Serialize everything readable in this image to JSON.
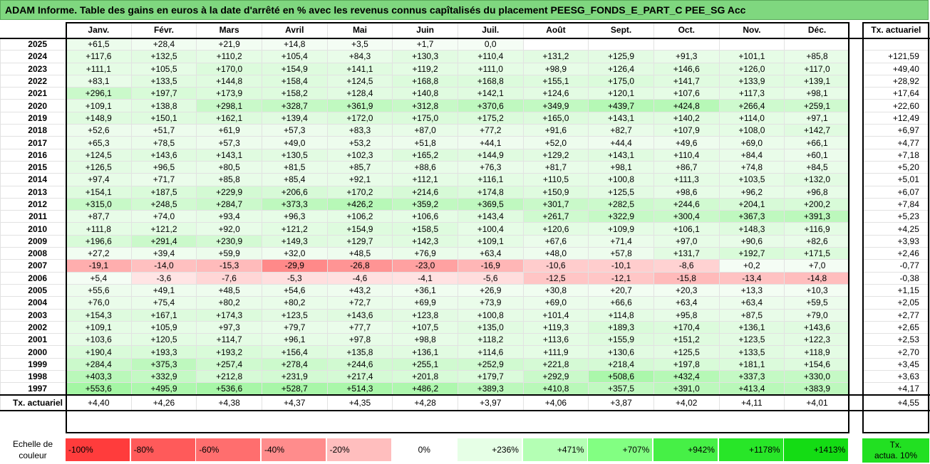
{
  "title": "ADAM Informe. Table des gains en euros à la date d'arrêté en % avec les revenus connus capîtalisés du placement PEESG_FONDS_E_PART_C PEE_SG Acc",
  "chart_data": {
    "type": "table",
    "columns": [
      "Janv.",
      "Févr.",
      "Mars",
      "Avril",
      "Mai",
      "Juin",
      "Juil.",
      "Août",
      "Sept.",
      "Oct.",
      "Nov.",
      "Déc."
    ],
    "tx_header": "Tx. actuariel",
    "rows": [
      {
        "year": "2025",
        "values": [
          "+61,5",
          "+28,4",
          "+21,9",
          "+14,8",
          "+3,5",
          "+1,7",
          "0,0",
          "",
          "",
          "",
          "",
          ""
        ],
        "tx": ""
      },
      {
        "year": "2024",
        "values": [
          "+117,6",
          "+132,5",
          "+110,2",
          "+105,4",
          "+84,3",
          "+130,3",
          "+110,4",
          "+131,2",
          "+125,9",
          "+91,3",
          "+101,1",
          "+85,8"
        ],
        "tx": "+121,59"
      },
      {
        "year": "2023",
        "values": [
          "+111,1",
          "+105,5",
          "+170,0",
          "+154,9",
          "+141,1",
          "+119,2",
          "+111,0",
          "+98,9",
          "+126,4",
          "+146,6",
          "+126,0",
          "+117,0"
        ],
        "tx": "+49,40"
      },
      {
        "year": "2022",
        "values": [
          "+83,1",
          "+133,5",
          "+144,8",
          "+158,4",
          "+124,5",
          "+168,8",
          "+168,8",
          "+155,1",
          "+175,0",
          "+141,7",
          "+133,9",
          "+139,1"
        ],
        "tx": "+28,92"
      },
      {
        "year": "2021",
        "values": [
          "+296,1",
          "+197,7",
          "+173,9",
          "+158,2",
          "+128,4",
          "+140,8",
          "+142,1",
          "+124,6",
          "+120,1",
          "+107,6",
          "+117,3",
          "+98,1"
        ],
        "tx": "+17,64"
      },
      {
        "year": "2020",
        "values": [
          "+109,1",
          "+138,8",
          "+298,1",
          "+328,7",
          "+361,9",
          "+312,8",
          "+370,6",
          "+349,9",
          "+439,7",
          "+424,8",
          "+266,4",
          "+259,1"
        ],
        "tx": "+22,60"
      },
      {
        "year": "2019",
        "values": [
          "+148,9",
          "+150,1",
          "+162,1",
          "+139,4",
          "+172,0",
          "+175,0",
          "+175,2",
          "+165,0",
          "+143,1",
          "+140,2",
          "+114,0",
          "+97,1"
        ],
        "tx": "+12,49"
      },
      {
        "year": "2018",
        "values": [
          "+52,6",
          "+51,7",
          "+61,9",
          "+57,3",
          "+83,3",
          "+87,0",
          "+77,2",
          "+91,6",
          "+82,7",
          "+107,9",
          "+108,0",
          "+142,7"
        ],
        "tx": "+6,97"
      },
      {
        "year": "2017",
        "values": [
          "+65,3",
          "+78,5",
          "+57,3",
          "+49,0",
          "+53,2",
          "+51,8",
          "+44,1",
          "+52,0",
          "+44,4",
          "+49,6",
          "+69,0",
          "+66,1"
        ],
        "tx": "+4,77"
      },
      {
        "year": "2016",
        "values": [
          "+124,5",
          "+143,6",
          "+143,1",
          "+130,5",
          "+102,3",
          "+165,2",
          "+144,9",
          "+129,2",
          "+143,1",
          "+110,4",
          "+84,4",
          "+60,1"
        ],
        "tx": "+7,18"
      },
      {
        "year": "2015",
        "values": [
          "+126,5",
          "+96,5",
          "+80,5",
          "+81,5",
          "+85,7",
          "+88,6",
          "+76,3",
          "+81,7",
          "+98,1",
          "+86,7",
          "+74,8",
          "+84,5"
        ],
        "tx": "+5,20"
      },
      {
        "year": "2014",
        "values": [
          "+97,4",
          "+71,7",
          "+85,8",
          "+85,4",
          "+92,1",
          "+112,1",
          "+116,1",
          "+110,5",
          "+100,8",
          "+111,3",
          "+103,5",
          "+132,0"
        ],
        "tx": "+5,01"
      },
      {
        "year": "2013",
        "values": [
          "+154,1",
          "+187,5",
          "+229,9",
          "+206,6",
          "+170,2",
          "+214,6",
          "+174,8",
          "+150,9",
          "+125,5",
          "+98,6",
          "+96,2",
          "+96,8"
        ],
        "tx": "+6,07"
      },
      {
        "year": "2012",
        "values": [
          "+315,0",
          "+248,5",
          "+284,7",
          "+373,3",
          "+426,2",
          "+359,2",
          "+369,5",
          "+301,7",
          "+282,5",
          "+244,6",
          "+204,1",
          "+200,2"
        ],
        "tx": "+7,84"
      },
      {
        "year": "2011",
        "values": [
          "+87,7",
          "+74,0",
          "+93,4",
          "+96,3",
          "+106,2",
          "+106,6",
          "+143,4",
          "+261,7",
          "+322,9",
          "+300,4",
          "+367,3",
          "+391,3"
        ],
        "tx": "+5,23"
      },
      {
        "year": "2010",
        "values": [
          "+111,8",
          "+121,2",
          "+92,0",
          "+121,2",
          "+154,9",
          "+158,5",
          "+100,4",
          "+120,6",
          "+109,9",
          "+106,1",
          "+148,3",
          "+116,9"
        ],
        "tx": "+4,25"
      },
      {
        "year": "2009",
        "values": [
          "+196,6",
          "+291,4",
          "+230,9",
          "+149,3",
          "+129,7",
          "+142,3",
          "+109,1",
          "+67,6",
          "+71,4",
          "+97,0",
          "+90,6",
          "+82,6"
        ],
        "tx": "+3,93"
      },
      {
        "year": "2008",
        "values": [
          "+27,2",
          "+39,4",
          "+59,9",
          "+32,0",
          "+48,5",
          "+76,9",
          "+63,4",
          "+48,0",
          "+57,8",
          "+131,7",
          "+192,7",
          "+171,5"
        ],
        "tx": "+2,46"
      },
      {
        "year": "2007",
        "values": [
          "-19,1",
          "-14,0",
          "-15,3",
          "-29,9",
          "-26,8",
          "-23,0",
          "-16,9",
          "-10,6",
          "-10,1",
          "-8,6",
          "+0,2",
          "+7,0"
        ],
        "tx": "-0,77"
      },
      {
        "year": "2006",
        "values": [
          "+5,4",
          "-3,6",
          "-7,6",
          "-5,3",
          "-4,6",
          "-4,1",
          "-5,6",
          "-12,5",
          "-12,1",
          "-15,8",
          "-13,4",
          "-14,8"
        ],
        "tx": "-0,38"
      },
      {
        "year": "2005",
        "values": [
          "+55,6",
          "+49,1",
          "+48,5",
          "+54,6",
          "+43,2",
          "+36,1",
          "+26,9",
          "+30,8",
          "+20,7",
          "+20,3",
          "+13,3",
          "+10,3"
        ],
        "tx": "+1,15"
      },
      {
        "year": "2004",
        "values": [
          "+76,0",
          "+75,4",
          "+80,2",
          "+80,2",
          "+72,7",
          "+69,9",
          "+73,9",
          "+69,0",
          "+66,6",
          "+63,4",
          "+63,4",
          "+59,5"
        ],
        "tx": "+2,05"
      },
      {
        "year": "2003",
        "values": [
          "+154,3",
          "+167,1",
          "+174,3",
          "+123,5",
          "+143,6",
          "+123,8",
          "+100,8",
          "+101,4",
          "+114,8",
          "+95,8",
          "+87,5",
          "+79,0"
        ],
        "tx": "+2,77"
      },
      {
        "year": "2002",
        "values": [
          "+109,1",
          "+105,9",
          "+97,3",
          "+79,7",
          "+77,7",
          "+107,5",
          "+135,0",
          "+119,3",
          "+189,3",
          "+170,4",
          "+136,1",
          "+143,6"
        ],
        "tx": "+2,65"
      },
      {
        "year": "2001",
        "values": [
          "+103,6",
          "+120,5",
          "+114,7",
          "+96,1",
          "+97,8",
          "+98,8",
          "+118,2",
          "+113,6",
          "+155,9",
          "+151,2",
          "+123,5",
          "+122,3"
        ],
        "tx": "+2,53"
      },
      {
        "year": "2000",
        "values": [
          "+190,4",
          "+193,3",
          "+193,2",
          "+156,4",
          "+135,8",
          "+136,1",
          "+114,6",
          "+111,9",
          "+130,6",
          "+125,5",
          "+133,5",
          "+118,9"
        ],
        "tx": "+2,70"
      },
      {
        "year": "1999",
        "values": [
          "+284,4",
          "+375,3",
          "+257,4",
          "+278,4",
          "+244,6",
          "+255,1",
          "+252,9",
          "+221,8",
          "+218,4",
          "+197,8",
          "+181,1",
          "+154,6"
        ],
        "tx": "+3,45"
      },
      {
        "year": "1998",
        "values": [
          "+403,3",
          "+332,9",
          "+212,8",
          "+231,9",
          "+217,4",
          "+201,8",
          "+179,7",
          "+292,9",
          "+508,6",
          "+432,4",
          "+337,3",
          "+330,0"
        ],
        "tx": "+3,63"
      },
      {
        "year": "1997",
        "values": [
          "+553,6",
          "+495,9",
          "+536,6",
          "+528,7",
          "+514,3",
          "+486,2",
          "+389,3",
          "+410,8",
          "+357,5",
          "+391,0",
          "+413,4",
          "+383,9"
        ],
        "tx": "+4,17"
      }
    ],
    "footer": {
      "label": "Tx. actuariel",
      "values": [
        "+4,40",
        "+4,26",
        "+4,38",
        "+4,37",
        "+4,35",
        "+4,28",
        "+3,97",
        "+4,06",
        "+3,87",
        "+4,02",
        "+4,11",
        "+4,01"
      ],
      "tx": "+4,55"
    }
  },
  "legend": {
    "label_line1": "Echelle de",
    "label_line2": "couleur",
    "cells": [
      {
        "text": "-100%",
        "color": "#ff3c3c"
      },
      {
        "text": "-80%",
        "color": "#ff5a5a"
      },
      {
        "text": "-60%",
        "color": "#ff6e6e"
      },
      {
        "text": "-40%",
        "color": "#ff8c8c"
      },
      {
        "text": "-20%",
        "color": "#ffbebe"
      },
      {
        "text": "0%",
        "color": "#ffffff"
      },
      {
        "text": "+236%",
        "color": "#e6ffe6"
      },
      {
        "text": "+471%",
        "color": "#b4ffb4"
      },
      {
        "text": "+707%",
        "color": "#82ff82"
      },
      {
        "text": "+942%",
        "color": "#46f046"
      },
      {
        "text": "+1178%",
        "color": "#28e628"
      },
      {
        "text": "+1413%",
        "color": "#14dc14"
      }
    ],
    "tx_line1": "Tx.",
    "tx_line2": "actua. 10%",
    "tx_color": "#22e022"
  },
  "colors": {
    "title_bg": "#7fd77f",
    "positive": "#2fd62f",
    "negative": "#ff3030"
  }
}
